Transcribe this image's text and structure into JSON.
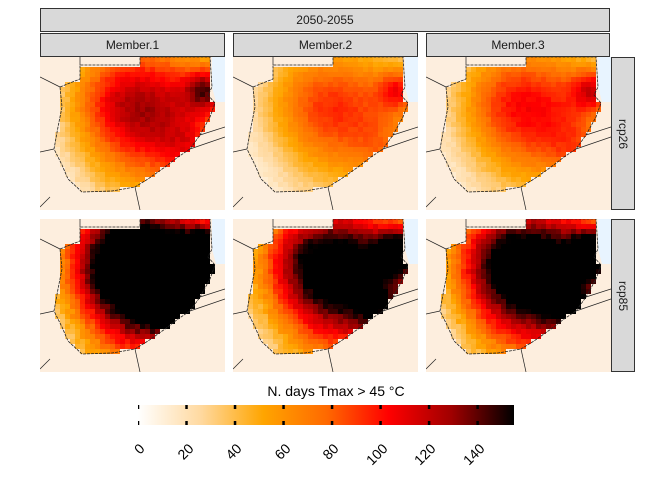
{
  "chart_data": {
    "type": "heatmap",
    "title": "",
    "facet_top": "2050-2055",
    "columns": [
      "Member.1",
      "Member.2",
      "Member.3"
    ],
    "rows": [
      "rcp26",
      "rcp85"
    ],
    "legend": {
      "title": "N. days Tmax > 45 °C",
      "range": [
        0,
        155
      ],
      "ticks": [
        0,
        20,
        40,
        60,
        80,
        100,
        120,
        140
      ],
      "tick_labels": [
        "0",
        "20",
        "40",
        "60",
        "80",
        "100",
        "120",
        "140"
      ],
      "placement": "bottom",
      "colors": [
        "#ffffff",
        "#ffd9a0",
        "#ffa500",
        "#ff6a00",
        "#ff0000",
        "#a00000",
        "#000000"
      ]
    },
    "panels": [
      {
        "row": "rcp26",
        "column": "Member.1",
        "intensity": 0.55
      },
      {
        "row": "rcp26",
        "column": "Member.2",
        "intensity": 0.4
      },
      {
        "row": "rcp26",
        "column": "Member.3",
        "intensity": 0.45
      },
      {
        "row": "rcp85",
        "column": "Member.1",
        "intensity": 1.0
      },
      {
        "row": "rcp85",
        "column": "Member.2",
        "intensity": 0.8
      },
      {
        "row": "rcp85",
        "column": "Member.3",
        "intensity": 0.85
      }
    ],
    "colors": {
      "ocean": "#e8f4ff",
      "land_bg": "#fdeede",
      "strip": "#d9d9d9"
    }
  }
}
